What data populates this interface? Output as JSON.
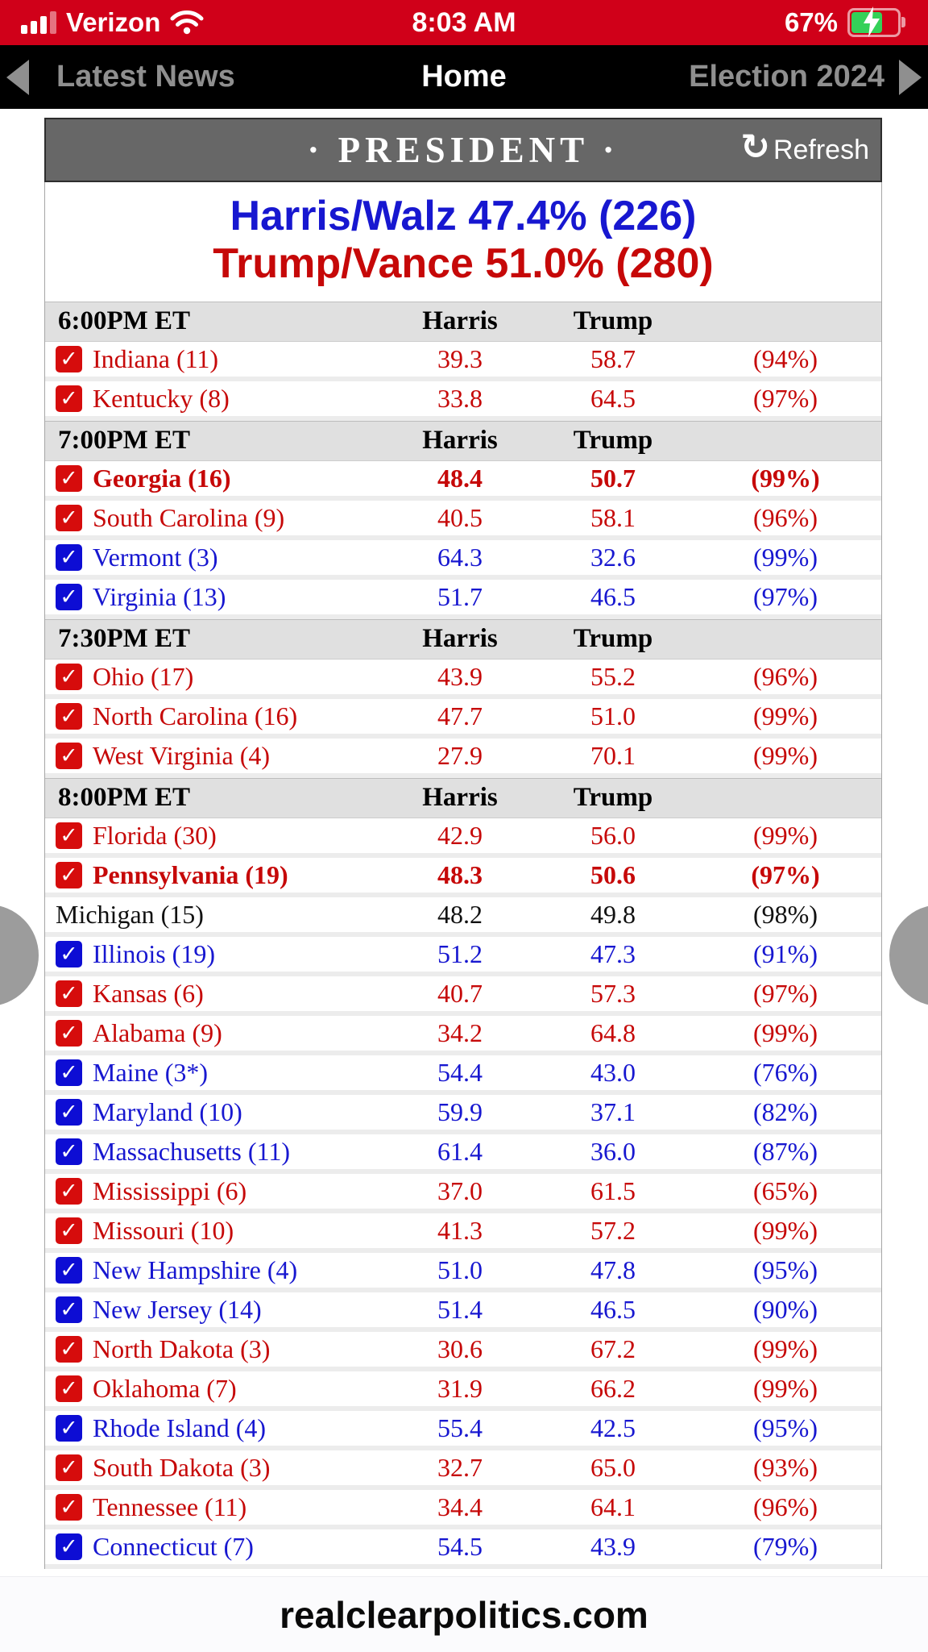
{
  "status_bar": {
    "carrier": "Verizon",
    "time": "8:03 AM",
    "battery_percent": "67%"
  },
  "nav": {
    "left": "Latest News",
    "center": "Home",
    "right": "Election 2024"
  },
  "board": {
    "title": "· PRESIDENT ·",
    "refresh_label": "Refresh",
    "refresh_glyph": "↻",
    "summary": {
      "harris_line": "Harris/Walz 47.4% (226)",
      "trump_line": "Trump/Vance 51.0% (280)"
    }
  },
  "icons": {
    "check_glyph": "✓"
  },
  "colors": {
    "status_red": "#d00019",
    "header_gray": "#676767",
    "section_gray": "#e0e0e0",
    "dem_blue": "#1717d0",
    "rep_red": "#c60808",
    "checkbox_blue": "#0d0dd4",
    "checkbox_red": "#d60c0c"
  },
  "table": {
    "sections": [
      {
        "time": "6:00PM ET",
        "col1": "Harris",
        "col2": "Trump",
        "rows": [
          {
            "state": "Indiana (11)",
            "harris": "39.3",
            "trump": "58.7",
            "reporting": "(94%)",
            "party": "rep",
            "checked": true,
            "bold": false
          },
          {
            "state": "Kentucky (8)",
            "harris": "33.8",
            "trump": "64.5",
            "reporting": "(97%)",
            "party": "rep",
            "checked": true,
            "bold": false
          }
        ]
      },
      {
        "time": "7:00PM ET",
        "col1": "Harris",
        "col2": "Trump",
        "rows": [
          {
            "state": "Georgia (16)",
            "harris": "48.4",
            "trump": "50.7",
            "reporting": "(99%)",
            "party": "rep",
            "checked": true,
            "bold": true
          },
          {
            "state": "South Carolina (9)",
            "harris": "40.5",
            "trump": "58.1",
            "reporting": "(96%)",
            "party": "rep",
            "checked": true,
            "bold": false
          },
          {
            "state": "Vermont (3)",
            "harris": "64.3",
            "trump": "32.6",
            "reporting": "(99%)",
            "party": "dem",
            "checked": true,
            "bold": false
          },
          {
            "state": "Virginia (13)",
            "harris": "51.7",
            "trump": "46.5",
            "reporting": "(97%)",
            "party": "dem",
            "checked": true,
            "bold": false
          }
        ]
      },
      {
        "time": "7:30PM ET",
        "col1": "Harris",
        "col2": "Trump",
        "rows": [
          {
            "state": "Ohio (17)",
            "harris": "43.9",
            "trump": "55.2",
            "reporting": "(96%)",
            "party": "rep",
            "checked": true,
            "bold": false
          },
          {
            "state": "North Carolina (16)",
            "harris": "47.7",
            "trump": "51.0",
            "reporting": "(99%)",
            "party": "rep",
            "checked": true,
            "bold": false
          },
          {
            "state": "West Virginia (4)",
            "harris": "27.9",
            "trump": "70.1",
            "reporting": "(99%)",
            "party": "rep",
            "checked": true,
            "bold": false
          }
        ]
      },
      {
        "time": "8:00PM ET",
        "col1": "Harris",
        "col2": "Trump",
        "rows": [
          {
            "state": "Florida (30)",
            "harris": "42.9",
            "trump": "56.0",
            "reporting": "(99%)",
            "party": "rep",
            "checked": true,
            "bold": false
          },
          {
            "state": "Pennsylvania (19)",
            "harris": "48.3",
            "trump": "50.6",
            "reporting": "(97%)",
            "party": "rep",
            "checked": true,
            "bold": true
          },
          {
            "state": "Michigan (15)",
            "harris": "48.2",
            "trump": "49.8",
            "reporting": "(98%)",
            "party": "none",
            "checked": false,
            "bold": false
          },
          {
            "state": "Illinois (19)",
            "harris": "51.2",
            "trump": "47.3",
            "reporting": "(91%)",
            "party": "dem",
            "checked": true,
            "bold": false
          },
          {
            "state": "Kansas (6)",
            "harris": "40.7",
            "trump": "57.3",
            "reporting": "(97%)",
            "party": "rep",
            "checked": true,
            "bold": false
          },
          {
            "state": "Alabama (9)",
            "harris": "34.2",
            "trump": "64.8",
            "reporting": "(99%)",
            "party": "rep",
            "checked": true,
            "bold": false
          },
          {
            "state": "Maine (3*)",
            "harris": "54.4",
            "trump": "43.0",
            "reporting": "(76%)",
            "party": "dem",
            "checked": true,
            "bold": false
          },
          {
            "state": "Maryland (10)",
            "harris": "59.9",
            "trump": "37.1",
            "reporting": "(82%)",
            "party": "dem",
            "checked": true,
            "bold": false
          },
          {
            "state": "Massachusetts (11)",
            "harris": "61.4",
            "trump": "36.0",
            "reporting": "(87%)",
            "party": "dem",
            "checked": true,
            "bold": false
          },
          {
            "state": "Mississippi (6)",
            "harris": "37.0",
            "trump": "61.5",
            "reporting": "(65%)",
            "party": "rep",
            "checked": true,
            "bold": false
          },
          {
            "state": "Missouri (10)",
            "harris": "41.3",
            "trump": "57.2",
            "reporting": "(99%)",
            "party": "rep",
            "checked": true,
            "bold": false
          },
          {
            "state": "New Hampshire (4)",
            "harris": "51.0",
            "trump": "47.8",
            "reporting": "(95%)",
            "party": "dem",
            "checked": true,
            "bold": false
          },
          {
            "state": "New Jersey (14)",
            "harris": "51.4",
            "trump": "46.5",
            "reporting": "(90%)",
            "party": "dem",
            "checked": true,
            "bold": false
          },
          {
            "state": "North Dakota (3)",
            "harris": "30.6",
            "trump": "67.2",
            "reporting": "(99%)",
            "party": "rep",
            "checked": true,
            "bold": false
          },
          {
            "state": "Oklahoma (7)",
            "harris": "31.9",
            "trump": "66.2",
            "reporting": "(99%)",
            "party": "rep",
            "checked": true,
            "bold": false
          },
          {
            "state": "Rhode Island (4)",
            "harris": "55.4",
            "trump": "42.5",
            "reporting": "(95%)",
            "party": "dem",
            "checked": true,
            "bold": false
          },
          {
            "state": "South Dakota (3)",
            "harris": "32.7",
            "trump": "65.0",
            "reporting": "(93%)",
            "party": "rep",
            "checked": true,
            "bold": false
          },
          {
            "state": "Tennessee (11)",
            "harris": "34.4",
            "trump": "64.1",
            "reporting": "(96%)",
            "party": "rep",
            "checked": true,
            "bold": false
          },
          {
            "state": "Connecticut (7)",
            "harris": "54.5",
            "trump": "43.9",
            "reporting": "(79%)",
            "party": "dem",
            "checked": true,
            "bold": false
          }
        ]
      }
    ]
  },
  "footer": {
    "site": "realclearpolitics.com"
  }
}
